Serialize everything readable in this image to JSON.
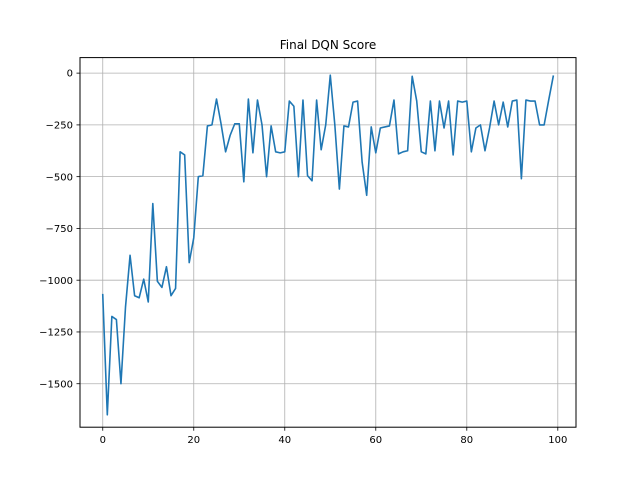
{
  "chart_data": {
    "type": "line",
    "title": "Final DQN Score",
    "xlabel": "",
    "ylabel": "",
    "xlim": [
      -5,
      104
    ],
    "ylim": [
      -1710,
      75
    ],
    "xticks": [
      0,
      20,
      40,
      60,
      80,
      100
    ],
    "yticks": [
      0,
      -250,
      -500,
      -750,
      -1000,
      -1250,
      -1500
    ],
    "ytick_labels": [
      "0",
      "−250",
      "−500",
      "−750",
      "−1000",
      "−1250",
      "−1500"
    ],
    "grid": true,
    "color": "#1f77b4",
    "series": [
      {
        "x": [
          0,
          1,
          2,
          3,
          4,
          5,
          6,
          7,
          8,
          9,
          10,
          11,
          12,
          13,
          14,
          15,
          16,
          17,
          18,
          19,
          20,
          21,
          22,
          23,
          24,
          25,
          26,
          27,
          28,
          29,
          30,
          31,
          32,
          33,
          34,
          35,
          36,
          37,
          38,
          39,
          40,
          41,
          42,
          43,
          44,
          45,
          46,
          47,
          48,
          49,
          50,
          51,
          52,
          53,
          54,
          55,
          56,
          57,
          58,
          59,
          60,
          61,
          62,
          63,
          64,
          65,
          66,
          67,
          68,
          69,
          70,
          71,
          72,
          73,
          74,
          75,
          76,
          77,
          78,
          79,
          80,
          81,
          82,
          83,
          84,
          85,
          86,
          87,
          88,
          89,
          90,
          91,
          92,
          93,
          94,
          95,
          96,
          97,
          98,
          99
        ],
        "values": [
          -1070,
          -1650,
          -1175,
          -1190,
          -1500,
          -1130,
          -880,
          -1075,
          -1085,
          -995,
          -1105,
          -630,
          -1005,
          -1035,
          -935,
          -1075,
          -1040,
          -380,
          -395,
          -915,
          -795,
          -500,
          -495,
          -255,
          -250,
          -125,
          -245,
          -380,
          -300,
          -245,
          -245,
          -525,
          -125,
          -385,
          -130,
          -250,
          -500,
          -255,
          -380,
          -385,
          -380,
          -135,
          -160,
          -500,
          -130,
          -495,
          -520,
          -130,
          -370,
          -250,
          -10,
          -250,
          -560,
          -255,
          -260,
          -140,
          -135,
          -430,
          -590,
          -260,
          -385,
          -265,
          -260,
          -255,
          -130,
          -390,
          -380,
          -375,
          -15,
          -135,
          -380,
          -390,
          -135,
          -375,
          -135,
          -265,
          -135,
          -395,
          -135,
          -140,
          -135,
          -380,
          -265,
          -250,
          -375,
          -265,
          -135,
          -250,
          -140,
          -260,
          -135,
          -130,
          -510,
          -130,
          -135,
          -135,
          -250,
          -250,
          -130,
          -15
        ]
      }
    ]
  }
}
